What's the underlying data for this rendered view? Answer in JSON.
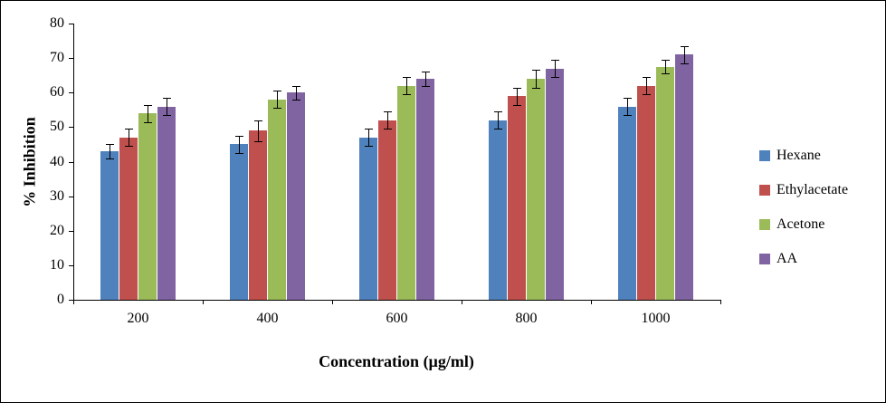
{
  "chart_data": {
    "type": "bar",
    "title": "",
    "xlabel": "Concentration (µg/ml)",
    "ylabel": "% Inhibition",
    "categories": [
      "200",
      "400",
      "600",
      "800",
      "1000"
    ],
    "series": [
      {
        "name": "Hexane",
        "color": "#4F81BD",
        "values": [
          43,
          45,
          47,
          52,
          56
        ],
        "errors": [
          2,
          2.5,
          2.5,
          2.5,
          2.5
        ]
      },
      {
        "name": "Ethylacetate",
        "color": "#C0504D",
        "values": [
          47,
          49,
          52,
          59,
          62
        ],
        "errors": [
          2.5,
          3,
          2.5,
          2.5,
          2.5
        ]
      },
      {
        "name": "Acetone",
        "color": "#9BBB59",
        "values": [
          54,
          58,
          62,
          64,
          67.5
        ],
        "errors": [
          2.5,
          2.5,
          2.5,
          2.5,
          2
        ]
      },
      {
        "name": "AA",
        "color": "#8064A2",
        "values": [
          56,
          60,
          64,
          67,
          71
        ],
        "errors": [
          2.5,
          2,
          2,
          2.5,
          2.5
        ]
      }
    ],
    "ylim": [
      0,
      80
    ],
    "ytick_step": 10,
    "grid": false,
    "legend_position": "right"
  }
}
